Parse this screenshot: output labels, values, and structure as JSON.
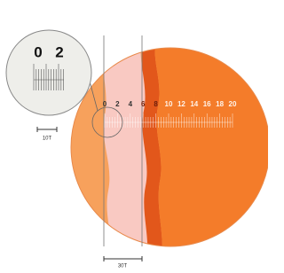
{
  "inset": {
    "labels": [
      "0",
      "2"
    ],
    "scale_label": "10T"
  },
  "scale": {
    "labels": [
      "0",
      "2",
      "4",
      "6",
      "8",
      "10",
      "12",
      "14",
      "16",
      "18",
      "20"
    ]
  },
  "bottom_label": "30T"
}
